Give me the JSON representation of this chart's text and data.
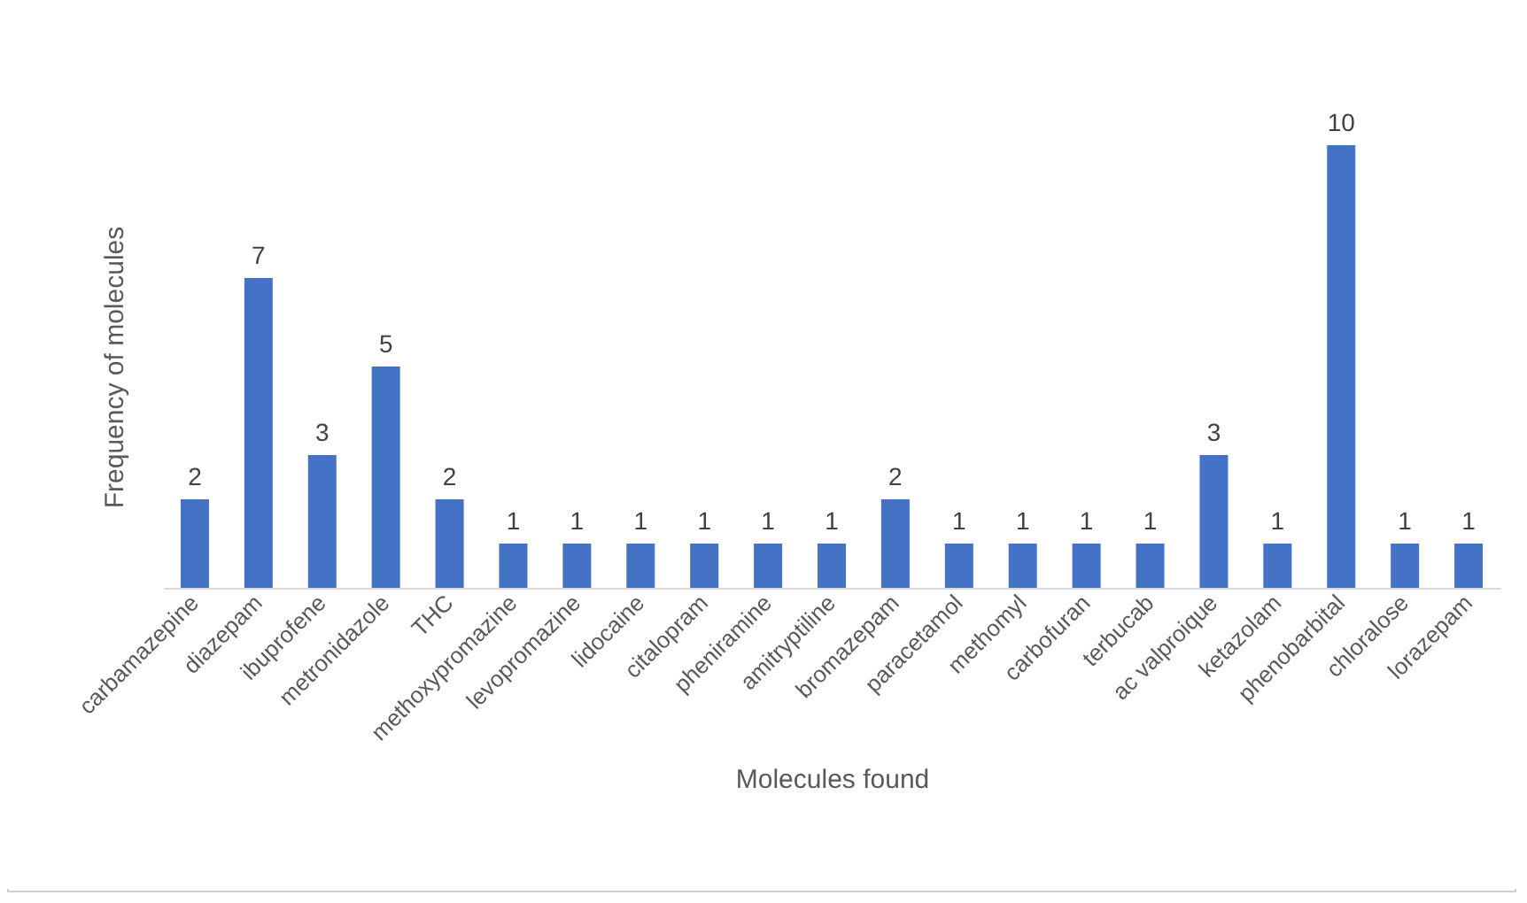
{
  "chart_data": {
    "type": "bar",
    "xlabel": "Molecules found",
    "ylabel": "Frequency of molecules",
    "categories": [
      "carbamazepine",
      "diazepam",
      "ibuprofene",
      "metronidazole",
      "THC",
      "methoxypromazine",
      "levopromazine",
      "lidocaine",
      "citalopram",
      "pheniramine",
      "amitryptiline",
      "bromazepam",
      "paracetamol",
      "methomyl",
      "carbofuran",
      "terbucab",
      "ac valproique",
      "ketazolam",
      "phenobarbital",
      "chloralose",
      "lorazepam"
    ],
    "values": [
      2,
      7,
      3,
      5,
      2,
      1,
      1,
      1,
      1,
      1,
      1,
      2,
      1,
      1,
      1,
      1,
      3,
      1,
      10,
      1,
      1
    ],
    "color": "#4472c4",
    "data_labels": true
  }
}
